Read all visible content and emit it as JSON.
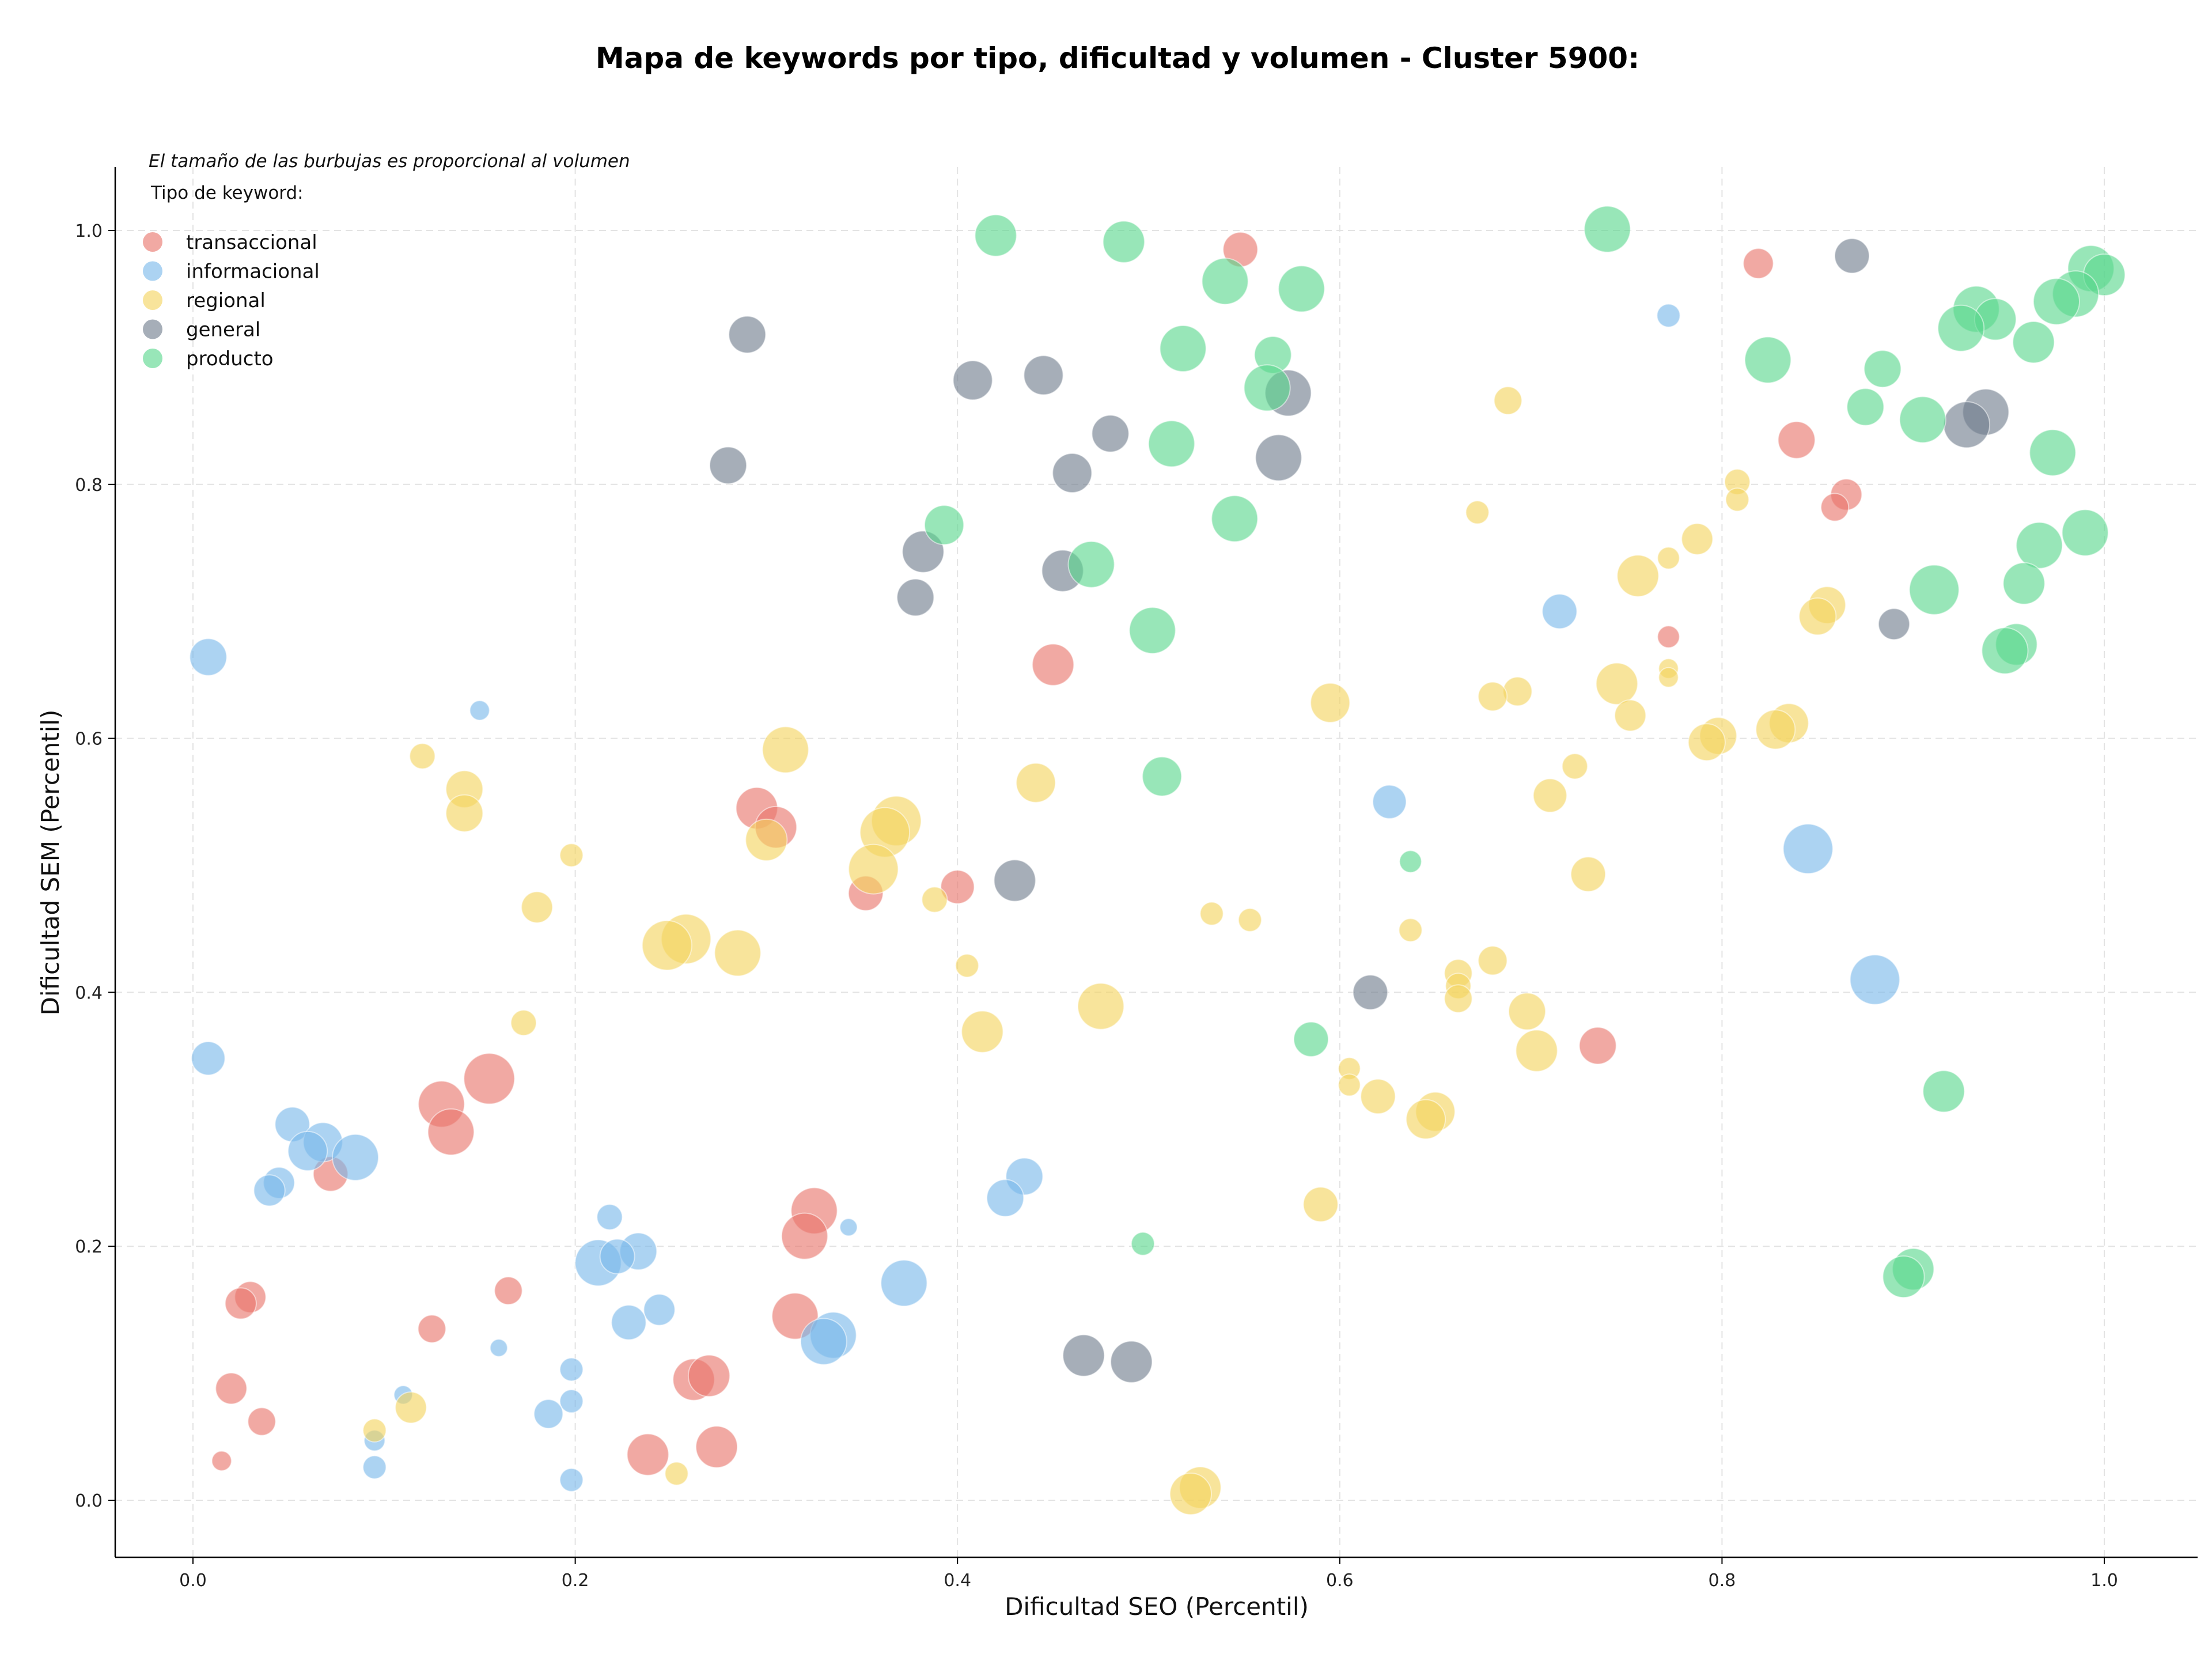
{
  "chart_data": {
    "type": "scatter",
    "title": "Mapa de keywords por tipo, dificultad y volumen - Cluster 5900:",
    "xlabel": "Dificultad SEO (Percentil)",
    "ylabel": "Dificultad SEM (Percentil)",
    "xlim": [
      -0.04,
      1.05
    ],
    "ylim": [
      -0.045,
      1.05
    ],
    "xticks": [
      "0.0",
      "0.2",
      "0.4",
      "0.6",
      "0.8",
      "1.0"
    ],
    "yticks": [
      "0.0",
      "0.2",
      "0.4",
      "0.6",
      "0.8",
      "1.0"
    ],
    "grid": true,
    "note": "El tamaño de las burbujas es proporcional al volumen",
    "legend_title": "Tipo de keyword:",
    "legend_position": "top-left",
    "series": [
      {
        "name": "transaccional",
        "color": "#e8746a",
        "points": [
          {
            "x": 0.548,
            "y": 0.985,
            "s": 60
          },
          {
            "x": 0.819,
            "y": 0.974,
            "s": 52
          },
          {
            "x": 0.839,
            "y": 0.835,
            "s": 64
          },
          {
            "x": 0.865,
            "y": 0.792,
            "s": 54
          },
          {
            "x": 0.859,
            "y": 0.782,
            "s": 48
          },
          {
            "x": 0.772,
            "y": 0.68,
            "s": 38
          },
          {
            "x": 0.45,
            "y": 0.658,
            "s": 72
          },
          {
            "x": 0.295,
            "y": 0.545,
            "s": 72
          },
          {
            "x": 0.305,
            "y": 0.53,
            "s": 72
          },
          {
            "x": 0.4,
            "y": 0.483,
            "s": 58
          },
          {
            "x": 0.352,
            "y": 0.478,
            "s": 60
          },
          {
            "x": 0.155,
            "y": 0.332,
            "s": 88
          },
          {
            "x": 0.13,
            "y": 0.312,
            "s": 80
          },
          {
            "x": 0.135,
            "y": 0.29,
            "s": 80
          },
          {
            "x": 0.735,
            "y": 0.358,
            "s": 64
          },
          {
            "x": 0.072,
            "y": 0.257,
            "s": 60
          },
          {
            "x": 0.325,
            "y": 0.228,
            "s": 80
          },
          {
            "x": 0.32,
            "y": 0.208,
            "s": 80
          },
          {
            "x": 0.03,
            "y": 0.16,
            "s": 54
          },
          {
            "x": 0.025,
            "y": 0.155,
            "s": 54
          },
          {
            "x": 0.165,
            "y": 0.165,
            "s": 48
          },
          {
            "x": 0.125,
            "y": 0.135,
            "s": 48
          },
          {
            "x": 0.315,
            "y": 0.145,
            "s": 80
          },
          {
            "x": 0.262,
            "y": 0.095,
            "s": 72
          },
          {
            "x": 0.27,
            "y": 0.098,
            "s": 72
          },
          {
            "x": 0.02,
            "y": 0.088,
            "s": 54
          },
          {
            "x": 0.036,
            "y": 0.062,
            "s": 48
          },
          {
            "x": 0.274,
            "y": 0.042,
            "s": 72
          },
          {
            "x": 0.238,
            "y": 0.036,
            "s": 72
          },
          {
            "x": 0.015,
            "y": 0.031,
            "s": 34
          }
        ]
      },
      {
        "name": "informacional",
        "color": "#79b8ea",
        "points": [
          {
            "x": 0.772,
            "y": 0.933,
            "s": 40
          },
          {
            "x": 0.008,
            "y": 0.664,
            "s": 64
          },
          {
            "x": 0.15,
            "y": 0.622,
            "s": 34
          },
          {
            "x": 0.715,
            "y": 0.7,
            "s": 60
          },
          {
            "x": 0.626,
            "y": 0.55,
            "s": 58
          },
          {
            "x": 0.845,
            "y": 0.513,
            "s": 86
          },
          {
            "x": 0.88,
            "y": 0.41,
            "s": 86
          },
          {
            "x": 0.008,
            "y": 0.348,
            "s": 58
          },
          {
            "x": 0.052,
            "y": 0.296,
            "s": 60
          },
          {
            "x": 0.068,
            "y": 0.282,
            "s": 68
          },
          {
            "x": 0.06,
            "y": 0.275,
            "s": 68
          },
          {
            "x": 0.085,
            "y": 0.27,
            "s": 80
          },
          {
            "x": 0.045,
            "y": 0.25,
            "s": 54
          },
          {
            "x": 0.04,
            "y": 0.244,
            "s": 54
          },
          {
            "x": 0.435,
            "y": 0.255,
            "s": 64
          },
          {
            "x": 0.425,
            "y": 0.238,
            "s": 64
          },
          {
            "x": 0.218,
            "y": 0.223,
            "s": 44
          },
          {
            "x": 0.212,
            "y": 0.187,
            "s": 80
          },
          {
            "x": 0.233,
            "y": 0.196,
            "s": 64
          },
          {
            "x": 0.222,
            "y": 0.192,
            "s": 60
          },
          {
            "x": 0.372,
            "y": 0.171,
            "s": 80
          },
          {
            "x": 0.244,
            "y": 0.15,
            "s": 54
          },
          {
            "x": 0.228,
            "y": 0.14,
            "s": 60
          },
          {
            "x": 0.343,
            "y": 0.215,
            "s": 30
          },
          {
            "x": 0.335,
            "y": 0.13,
            "s": 80
          },
          {
            "x": 0.33,
            "y": 0.125,
            "s": 80
          },
          {
            "x": 0.16,
            "y": 0.12,
            "s": 30
          },
          {
            "x": 0.198,
            "y": 0.103,
            "s": 40
          },
          {
            "x": 0.11,
            "y": 0.083,
            "s": 32
          },
          {
            "x": 0.198,
            "y": 0.078,
            "s": 40
          },
          {
            "x": 0.186,
            "y": 0.068,
            "s": 50
          },
          {
            "x": 0.095,
            "y": 0.047,
            "s": 36
          },
          {
            "x": 0.095,
            "y": 0.026,
            "s": 40
          },
          {
            "x": 0.198,
            "y": 0.016,
            "s": 40
          }
        ]
      },
      {
        "name": "regional",
        "color": "#f4d35e",
        "points": [
          {
            "x": 0.688,
            "y": 0.866,
            "s": 48
          },
          {
            "x": 0.808,
            "y": 0.802,
            "s": 44
          },
          {
            "x": 0.808,
            "y": 0.788,
            "s": 40
          },
          {
            "x": 0.672,
            "y": 0.778,
            "s": 40
          },
          {
            "x": 0.787,
            "y": 0.757,
            "s": 54
          },
          {
            "x": 0.772,
            "y": 0.742,
            "s": 38
          },
          {
            "x": 0.756,
            "y": 0.728,
            "s": 72
          },
          {
            "x": 0.855,
            "y": 0.705,
            "s": 64
          },
          {
            "x": 0.85,
            "y": 0.696,
            "s": 64
          },
          {
            "x": 0.745,
            "y": 0.643,
            "s": 72
          },
          {
            "x": 0.693,
            "y": 0.637,
            "s": 50
          },
          {
            "x": 0.68,
            "y": 0.633,
            "s": 50
          },
          {
            "x": 0.772,
            "y": 0.655,
            "s": 34
          },
          {
            "x": 0.772,
            "y": 0.648,
            "s": 34
          },
          {
            "x": 0.595,
            "y": 0.628,
            "s": 68
          },
          {
            "x": 0.752,
            "y": 0.618,
            "s": 54
          },
          {
            "x": 0.835,
            "y": 0.612,
            "s": 68
          },
          {
            "x": 0.828,
            "y": 0.607,
            "s": 68
          },
          {
            "x": 0.798,
            "y": 0.602,
            "s": 64
          },
          {
            "x": 0.792,
            "y": 0.597,
            "s": 64
          },
          {
            "x": 0.31,
            "y": 0.591,
            "s": 80
          },
          {
            "x": 0.12,
            "y": 0.586,
            "s": 44
          },
          {
            "x": 0.723,
            "y": 0.578,
            "s": 44
          },
          {
            "x": 0.142,
            "y": 0.56,
            "s": 64
          },
          {
            "x": 0.441,
            "y": 0.565,
            "s": 68
          },
          {
            "x": 0.71,
            "y": 0.555,
            "s": 58
          },
          {
            "x": 0.142,
            "y": 0.541,
            "s": 64
          },
          {
            "x": 0.368,
            "y": 0.535,
            "s": 86
          },
          {
            "x": 0.362,
            "y": 0.526,
            "s": 86
          },
          {
            "x": 0.3,
            "y": 0.52,
            "s": 72
          },
          {
            "x": 0.198,
            "y": 0.508,
            "s": 40
          },
          {
            "x": 0.356,
            "y": 0.497,
            "s": 86
          },
          {
            "x": 0.73,
            "y": 0.493,
            "s": 60
          },
          {
            "x": 0.388,
            "y": 0.473,
            "s": 44
          },
          {
            "x": 0.18,
            "y": 0.467,
            "s": 54
          },
          {
            "x": 0.533,
            "y": 0.462,
            "s": 40
          },
          {
            "x": 0.553,
            "y": 0.457,
            "s": 40
          },
          {
            "x": 0.637,
            "y": 0.449,
            "s": 40
          },
          {
            "x": 0.258,
            "y": 0.442,
            "s": 86
          },
          {
            "x": 0.248,
            "y": 0.437,
            "s": 86
          },
          {
            "x": 0.285,
            "y": 0.431,
            "s": 80
          },
          {
            "x": 0.68,
            "y": 0.425,
            "s": 50
          },
          {
            "x": 0.405,
            "y": 0.421,
            "s": 40
          },
          {
            "x": 0.662,
            "y": 0.415,
            "s": 48
          },
          {
            "x": 0.662,
            "y": 0.405,
            "s": 44
          },
          {
            "x": 0.662,
            "y": 0.395,
            "s": 48
          },
          {
            "x": 0.475,
            "y": 0.389,
            "s": 80
          },
          {
            "x": 0.698,
            "y": 0.385,
            "s": 64
          },
          {
            "x": 0.173,
            "y": 0.376,
            "s": 44
          },
          {
            "x": 0.413,
            "y": 0.369,
            "s": 72
          },
          {
            "x": 0.703,
            "y": 0.354,
            "s": 72
          },
          {
            "x": 0.605,
            "y": 0.34,
            "s": 38
          },
          {
            "x": 0.605,
            "y": 0.327,
            "s": 38
          },
          {
            "x": 0.62,
            "y": 0.318,
            "s": 60
          },
          {
            "x": 0.65,
            "y": 0.306,
            "s": 68
          },
          {
            "x": 0.645,
            "y": 0.3,
            "s": 68
          },
          {
            "x": 0.59,
            "y": 0.233,
            "s": 60
          },
          {
            "x": 0.114,
            "y": 0.073,
            "s": 54
          },
          {
            "x": 0.095,
            "y": 0.055,
            "s": 40
          },
          {
            "x": 0.253,
            "y": 0.021,
            "s": 40
          },
          {
            "x": 0.527,
            "y": 0.01,
            "s": 72
          },
          {
            "x": 0.522,
            "y": 0.005,
            "s": 72
          }
        ]
      },
      {
        "name": "general",
        "color": "#6f7d8c",
        "points": [
          {
            "x": 0.868,
            "y": 0.98,
            "s": 60
          },
          {
            "x": 0.29,
            "y": 0.918,
            "s": 64
          },
          {
            "x": 0.445,
            "y": 0.886,
            "s": 68
          },
          {
            "x": 0.408,
            "y": 0.882,
            "s": 68
          },
          {
            "x": 0.573,
            "y": 0.872,
            "s": 80
          },
          {
            "x": 0.938,
            "y": 0.857,
            "s": 80
          },
          {
            "x": 0.928,
            "y": 0.847,
            "s": 80
          },
          {
            "x": 0.48,
            "y": 0.84,
            "s": 64
          },
          {
            "x": 0.46,
            "y": 0.809,
            "s": 68
          },
          {
            "x": 0.28,
            "y": 0.815,
            "s": 64
          },
          {
            "x": 0.568,
            "y": 0.821,
            "s": 80
          },
          {
            "x": 0.382,
            "y": 0.747,
            "s": 72
          },
          {
            "x": 0.455,
            "y": 0.732,
            "s": 72
          },
          {
            "x": 0.378,
            "y": 0.711,
            "s": 64
          },
          {
            "x": 0.89,
            "y": 0.69,
            "s": 54
          },
          {
            "x": 0.43,
            "y": 0.488,
            "s": 72
          },
          {
            "x": 0.616,
            "y": 0.4,
            "s": 60
          },
          {
            "x": 0.466,
            "y": 0.114,
            "s": 72
          },
          {
            "x": 0.491,
            "y": 0.109,
            "s": 72
          }
        ]
      },
      {
        "name": "producto",
        "color": "#58d68d",
        "points": [
          {
            "x": 0.42,
            "y": 0.996,
            "s": 72
          },
          {
            "x": 0.487,
            "y": 0.991,
            "s": 72
          },
          {
            "x": 0.74,
            "y": 1.001,
            "s": 80
          },
          {
            "x": 0.54,
            "y": 0.96,
            "s": 80
          },
          {
            "x": 0.58,
            "y": 0.954,
            "s": 80
          },
          {
            "x": 0.993,
            "y": 0.97,
            "s": 80
          },
          {
            "x": 1.0,
            "y": 0.965,
            "s": 72
          },
          {
            "x": 0.985,
            "y": 0.95,
            "s": 80
          },
          {
            "x": 0.975,
            "y": 0.944,
            "s": 80
          },
          {
            "x": 0.933,
            "y": 0.938,
            "s": 80
          },
          {
            "x": 0.943,
            "y": 0.93,
            "s": 72
          },
          {
            "x": 0.925,
            "y": 0.923,
            "s": 80
          },
          {
            "x": 0.963,
            "y": 0.912,
            "s": 72
          },
          {
            "x": 0.518,
            "y": 0.907,
            "s": 80
          },
          {
            "x": 0.565,
            "y": 0.902,
            "s": 64
          },
          {
            "x": 0.824,
            "y": 0.898,
            "s": 80
          },
          {
            "x": 0.884,
            "y": 0.891,
            "s": 64
          },
          {
            "x": 0.562,
            "y": 0.876,
            "s": 80
          },
          {
            "x": 0.875,
            "y": 0.861,
            "s": 64
          },
          {
            "x": 0.905,
            "y": 0.851,
            "s": 80
          },
          {
            "x": 0.512,
            "y": 0.832,
            "s": 80
          },
          {
            "x": 0.973,
            "y": 0.825,
            "s": 80
          },
          {
            "x": 0.545,
            "y": 0.773,
            "s": 80
          },
          {
            "x": 0.393,
            "y": 0.768,
            "s": 68
          },
          {
            "x": 0.99,
            "y": 0.762,
            "s": 80
          },
          {
            "x": 0.966,
            "y": 0.752,
            "s": 80
          },
          {
            "x": 0.47,
            "y": 0.737,
            "s": 80
          },
          {
            "x": 0.958,
            "y": 0.722,
            "s": 72
          },
          {
            "x": 0.911,
            "y": 0.717,
            "s": 86
          },
          {
            "x": 0.502,
            "y": 0.685,
            "s": 80
          },
          {
            "x": 0.954,
            "y": 0.674,
            "s": 72
          },
          {
            "x": 0.948,
            "y": 0.669,
            "s": 80
          },
          {
            "x": 0.507,
            "y": 0.57,
            "s": 68
          },
          {
            "x": 0.637,
            "y": 0.503,
            "s": 38
          },
          {
            "x": 0.585,
            "y": 0.363,
            "s": 60
          },
          {
            "x": 0.916,
            "y": 0.322,
            "s": 72
          },
          {
            "x": 0.9,
            "y": 0.182,
            "s": 72
          },
          {
            "x": 0.895,
            "y": 0.176,
            "s": 72
          },
          {
            "x": 0.497,
            "y": 0.202,
            "s": 40
          }
        ]
      }
    ]
  }
}
